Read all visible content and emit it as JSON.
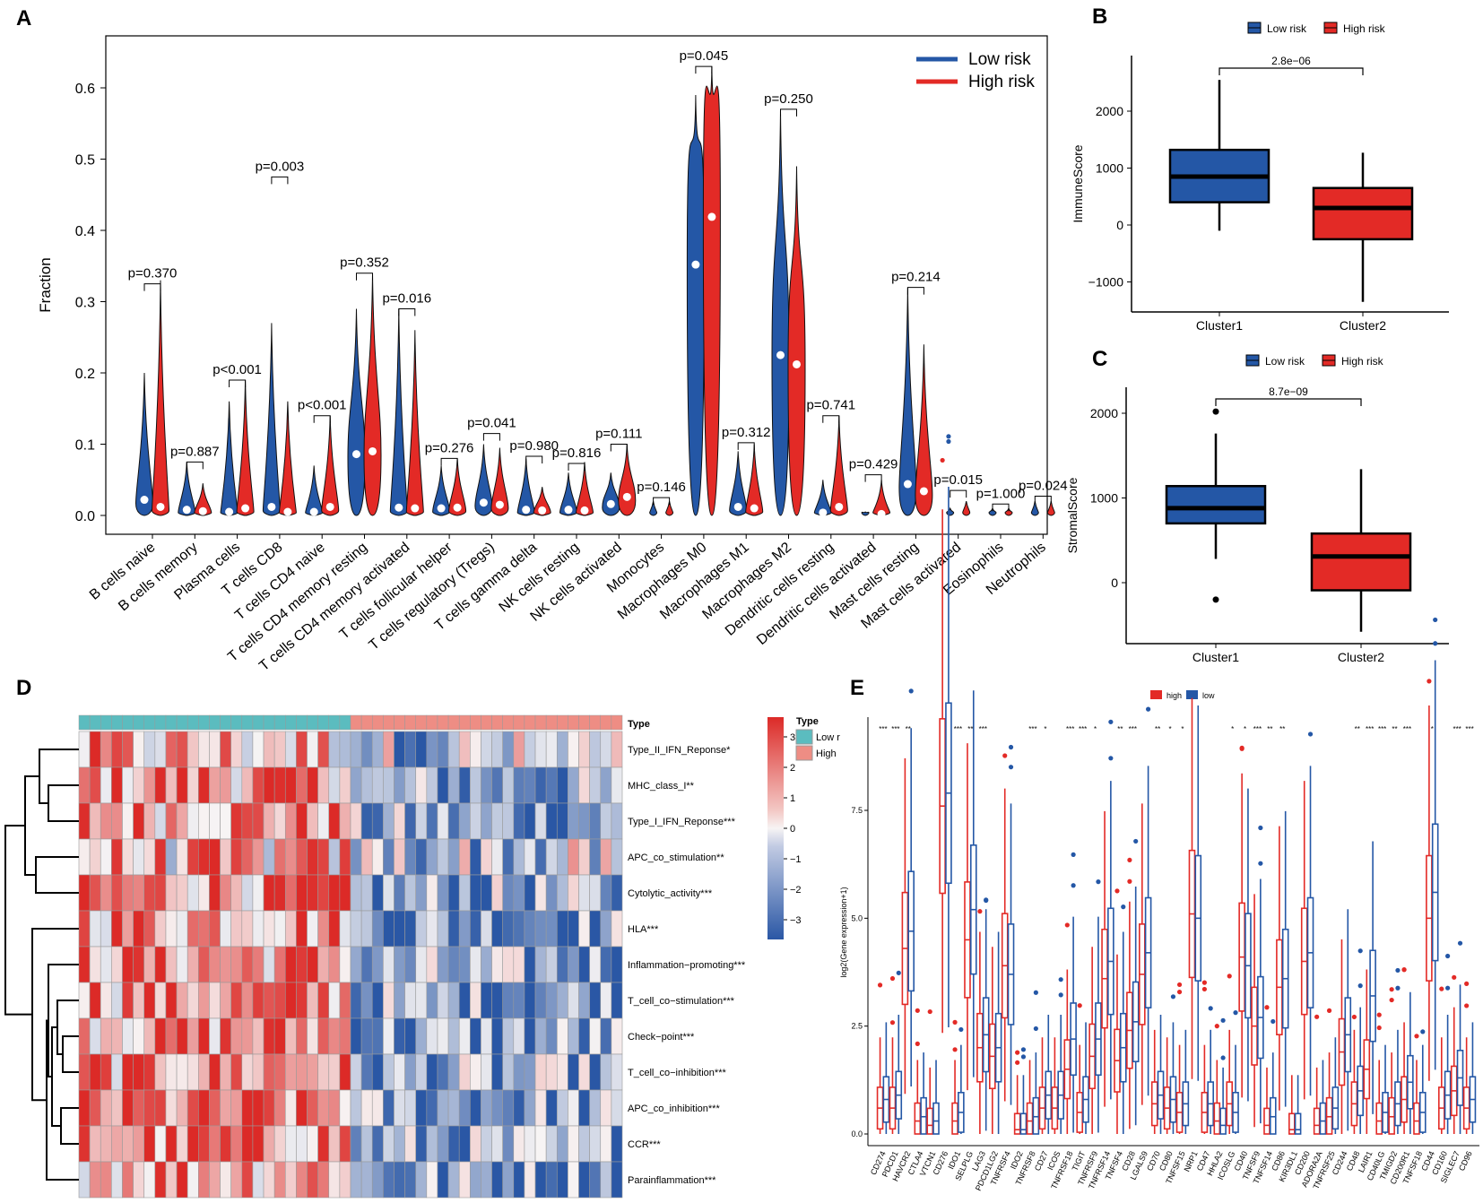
{
  "panels": {
    "A": {
      "label": "A"
    },
    "B": {
      "label": "B"
    },
    "C": {
      "label": "C"
    },
    "D": {
      "label": "D"
    },
    "E": {
      "label": "E"
    }
  },
  "colors": {
    "low": "#2457a6",
    "high": "#e32a26",
    "teal": "#5bbcbf",
    "salmon": "#ee8d84",
    "heat_red": "#dc2a27",
    "heat_blue": "#2a57a5",
    "heat_white": "#f7f4f4"
  },
  "chart_data": [
    {
      "panel": "A",
      "type": "violin",
      "ylabel": "Fraction",
      "ylim": [
        0,
        0.66
      ],
      "yticks": [
        "0.0",
        "0.1",
        "0.2",
        "0.3",
        "0.4",
        "0.5",
        "0.6"
      ],
      "ytick_values": [
        0,
        0.1,
        0.2,
        0.3,
        0.4,
        0.5,
        0.6
      ],
      "legend": [
        "Low risk",
        "High risk"
      ],
      "categories": [
        "B cells naive",
        "B cells memory",
        "Plasma cells",
        "T cells CD8",
        "T cells CD4 naive",
        "T cells CD4 memory resting",
        "T cells CD4 memory activated",
        "T cells follicular helper",
        "T cells regulatory (Tregs)",
        "T cells gamma delta",
        "NK cells resting",
        "NK cells activated",
        "Monocytes",
        "Macrophages M0",
        "Macrophages M1",
        "Macrophages M2",
        "Dendritic cells resting",
        "Dendritic cells activated",
        "Mast cells resting",
        "Mast cells activated",
        "Eosinophils",
        "Neutrophils"
      ],
      "pvalues": [
        "p=0.370",
        "p=0.887",
        "p<0.001",
        "p=0.003",
        "p<0.001",
        "p=0.352",
        "p=0.016",
        "p=0.276",
        "p=0.041",
        "p=0.980",
        "p=0.816",
        "p=0.111",
        "p=0.146",
        "p=0.045",
        "p=0.312",
        "p=0.250",
        "p=0.741",
        "p=0.429",
        "p=0.214",
        "p=0.015",
        "p=1.000",
        "p=0.024"
      ],
      "low_max": [
        0.2,
        0.075,
        0.16,
        0.27,
        0.07,
        0.29,
        0.29,
        0.07,
        0.1,
        0.08,
        0.06,
        0.06,
        0.02,
        0.59,
        0.09,
        0.57,
        0.05,
        0.005,
        0.32,
        0.01,
        0.01,
        0.02
      ],
      "high_max": [
        0.33,
        0.045,
        0.19,
        0.16,
        0.14,
        0.34,
        0.26,
        0.08,
        0.095,
        0.04,
        0.075,
        0.1,
        0.02,
        0.63,
        0.1,
        0.49,
        0.14,
        0.05,
        0.24,
        0.02,
        0.01,
        0.02
      ],
      "low_median": [
        0.022,
        0.008,
        0.005,
        0.012,
        0.005,
        0.086,
        0.011,
        0.01,
        0.018,
        0.008,
        0.008,
        0.016,
        0.001,
        0.352,
        0.012,
        0.225,
        0.004,
        0.001,
        0.044,
        0.001,
        0.001,
        0.001
      ],
      "high_median": [
        0.012,
        0.006,
        0.01,
        0.005,
        0.012,
        0.09,
        0.01,
        0.011,
        0.015,
        0.007,
        0.007,
        0.026,
        0.001,
        0.419,
        0.01,
        0.212,
        0.012,
        0.002,
        0.034,
        0.002,
        0.001,
        0.001
      ],
      "pbar_y": [
        0.325,
        0.075,
        0.19,
        0.475,
        0.14,
        0.34,
        0.29,
        0.08,
        0.115,
        0.083,
        0.073,
        0.1,
        0.025,
        0.63,
        0.102,
        0.57,
        0.14,
        0.057,
        0.32,
        0.035,
        0.016,
        0.027
      ]
    },
    {
      "panel": "B",
      "type": "boxplot",
      "ylabel": "ImmuneScore",
      "legend": [
        "Low risk",
        "High risk"
      ],
      "categories": [
        "Cluster1",
        "Cluster2"
      ],
      "yticks": [
        "2000",
        "1000",
        "0",
        "−1000"
      ],
      "ytick_values": [
        2000,
        1000,
        0,
        -1000
      ],
      "ylim": [
        -1550,
        2950
      ],
      "boxes": [
        {
          "q1": 400,
          "median": 850,
          "q3": 1320,
          "lo": -100,
          "hi": 2550,
          "outliers": []
        },
        {
          "q1": -250,
          "median": 300,
          "q3": 650,
          "lo": -1350,
          "hi": 1270,
          "outliers": []
        }
      ],
      "pvalue": "2.8e−06"
    },
    {
      "panel": "C",
      "type": "boxplot",
      "ylabel": "StromalScore",
      "legend": [
        "Low risk",
        "High risk"
      ],
      "categories": [
        "Cluster1",
        "Cluster2"
      ],
      "yticks": [
        "2000",
        "1000",
        "0"
      ],
      "ytick_values": [
        2000,
        1000,
        0
      ],
      "ylim": [
        -700,
        2300
      ],
      "boxes": [
        {
          "q1": 700,
          "median": 880,
          "q3": 1140,
          "lo": 280,
          "hi": 1760,
          "outliers": [
            2020,
            -200
          ]
        },
        {
          "q1": -90,
          "median": 310,
          "q3": 580,
          "lo": -580,
          "hi": 1340,
          "outliers": []
        }
      ],
      "pvalue": "8.7e−09"
    },
    {
      "panel": "D",
      "type": "heatmap",
      "annotation_title": "Type",
      "annotation_legend": [
        "Low risk",
        "High risk"
      ],
      "annotation_legend_shown": [
        "Low r",
        "High"
      ],
      "scale_ticks": [
        "3",
        "2",
        "1",
        "0",
        "−1",
        "−2",
        "−3"
      ],
      "scale_values": [
        3,
        2,
        1,
        0,
        -1,
        -2,
        -3
      ],
      "n_low": 25,
      "n_high": 25,
      "rows": [
        "Type_II_IFN_Reponse*",
        "MHC_class_I**",
        "Type_I_IFN_Reponse***",
        "APC_co_stimulation**",
        "Cytolytic_activity***",
        "HLA***",
        "Inflammation−promoting***",
        "T_cell_co−stimulation***",
        "Check−point***",
        "T_cell_co−inhibition***",
        "APC_co_inhibition***",
        "CCR***",
        "Parainflammation***"
      ]
    },
    {
      "panel": "E",
      "type": "boxplot",
      "ylabel": "log2(Gene expression+1)",
      "legend": [
        "high",
        "low"
      ],
      "yticks": [
        "0.0",
        "2.5",
        "5.0",
        "7.5"
      ],
      "ytick_values": [
        0,
        2.5,
        5.0,
        7.5
      ],
      "ylim": [
        -0.2,
        9.4
      ],
      "genes": [
        "CD274",
        "PDCD1",
        "HAVCR2",
        "CTLA4",
        "VTCN1",
        "CD276",
        "IDO1",
        "SELPLG",
        "LAG3",
        "PDCD1LG2",
        "TNFRSF4",
        "IDO2",
        "TNFRSF8",
        "CD27",
        "ICOS",
        "TNFRSF18",
        "TIGIT",
        "TNFRSF9",
        "TNFRSF14",
        "TNFSF4",
        "CD28",
        "LGALS9",
        "CD70",
        "CD80",
        "TNFSF15",
        "NRP1",
        "CD47",
        "HHLA2",
        "ICOSLG",
        "CD40",
        "TNFSF9",
        "TNFSF14",
        "CD86",
        "KIR3DL1",
        "CD200",
        "ADORA2A",
        "TNFRSF25",
        "CD244",
        "CD48",
        "LAIR1",
        "CD40LG",
        "TMIGD2",
        "CD200R1",
        "TNFSF18",
        "CD44",
        "CD160",
        "SIGLEC7",
        "CD96"
      ],
      "high_median": [
        0.6,
        0.6,
        4.3,
        0.3,
        0.2,
        7.6,
        0.3,
        4.5,
        2.0,
        1.8,
        3.9,
        0.1,
        0.3,
        0.6,
        0.6,
        1.5,
        0.5,
        1.8,
        3.6,
        1.7,
        2.4,
        3.7,
        0.7,
        0.6,
        0.5,
        5.1,
        0.5,
        0.3,
        0.7,
        4.1,
        2.5,
        0.2,
        3.4,
        0.1,
        4.0,
        0.2,
        0.4,
        1.9,
        0.7,
        1.5,
        0.3,
        0.4,
        0.8,
        0.3,
        5.0,
        0.6,
        1.0,
        0.6
      ],
      "low_median": [
        0.8,
        0.9,
        4.7,
        0.4,
        0.3,
        7.9,
        0.5,
        5.2,
        2.3,
        2.0,
        3.7,
        0.1,
        0.4,
        0.9,
        0.9,
        2.2,
        0.8,
        2.2,
        4.0,
        2.0,
        2.6,
        4.2,
        0.9,
        0.8,
        0.7,
        5.0,
        0.7,
        0.2,
        0.5,
        3.9,
        2.7,
        0.4,
        3.6,
        0.1,
        4.2,
        0.3,
        0.6,
        2.3,
        1.0,
        3.2,
        0.5,
        0.7,
        1.2,
        0.5,
        5.6,
        0.9,
        1.3,
        0.8
      ],
      "stars": [
        "***",
        "***",
        "**",
        "",
        "",
        "",
        "***",
        "**",
        "***",
        "",
        "",
        "",
        "***",
        "*",
        "",
        "***",
        "***",
        "*",
        "",
        "**",
        "***",
        "",
        "**",
        "*",
        "*",
        "",
        "",
        "",
        "*",
        "*",
        "***",
        "**",
        "**",
        "",
        "",
        "",
        "",
        "",
        "**",
        "***",
        "***",
        "**",
        "***",
        "",
        "*",
        "",
        "***",
        "***"
      ]
    }
  ]
}
